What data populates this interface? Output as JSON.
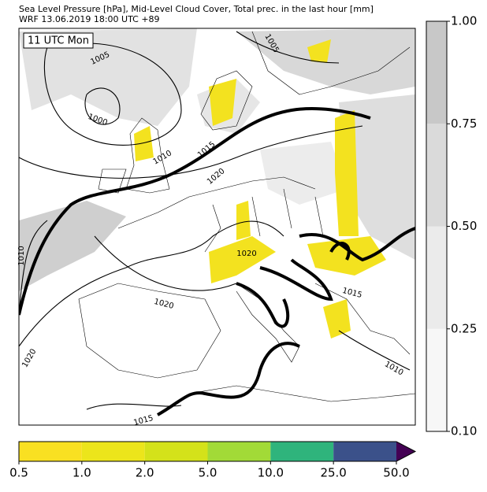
{
  "header": {
    "line1": "Sea Level Pressure [hPa], Mid-Level Cloud Cover, Total prec. in the last hour [mm]",
    "line2": "WRF 13.06.2019 18:00 UTC +89"
  },
  "map": {
    "time_label": "11 UTC Mon",
    "contour_labels": [
      "1005",
      "1005",
      "1000",
      "1010",
      "1015",
      "1020",
      "1010",
      "1020",
      "1020",
      "1015",
      "1020",
      "1010",
      "1015"
    ]
  },
  "cloud_colorbar": {
    "levels": [
      "0.10",
      "0.25",
      "0.50",
      "0.75",
      "1.00"
    ],
    "colors": [
      "#f7f7f7",
      "#ebebeb",
      "#dadada",
      "#c8c8c8"
    ]
  },
  "precip_colorbar": {
    "levels": [
      "0.5",
      "1.0",
      "2.0",
      "5.0",
      "10.0",
      "25.0",
      "50.0"
    ],
    "colors": [
      "#f9e022",
      "#ece51b",
      "#d4e21a",
      "#a2da37",
      "#2fb47c",
      "#3b518a"
    ],
    "over_color": "#440154"
  }
}
